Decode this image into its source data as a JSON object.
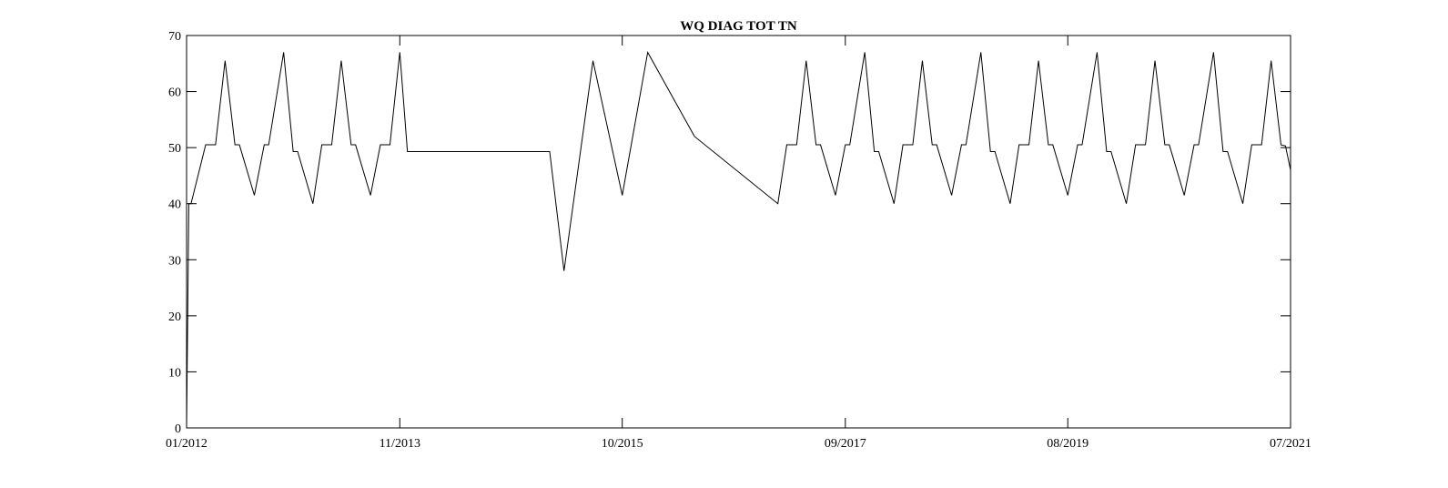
{
  "chart_data": {
    "type": "line",
    "title": "WQ DIAG TOT TN",
    "xlabel": "",
    "ylabel": "",
    "x_axis_type": "date",
    "xlim": [
      "2012-01-01",
      "2021-07-01"
    ],
    "ylim": [
      0,
      70
    ],
    "grid": false,
    "legend": "none",
    "line_color": "#000000",
    "x_ticks": [
      {
        "value": "2012-01-01",
        "label": "01/2012"
      },
      {
        "value": "2013-11-01",
        "label": "11/2013"
      },
      {
        "value": "2015-10-01",
        "label": "10/2015"
      },
      {
        "value": "2017-09-01",
        "label": "09/2017"
      },
      {
        "value": "2019-08-01",
        "label": "08/2019"
      },
      {
        "value": "2021-07-01",
        "label": "07/2021"
      }
    ],
    "y_ticks": [
      0,
      10,
      20,
      30,
      40,
      50,
      60,
      70
    ],
    "series": [
      {
        "x": [
          "2012-01-01",
          "2012-01-08",
          "2012-01-15",
          "2012-03-01",
          "2012-04-01",
          "2012-05-01",
          "2012-06-01",
          "2012-06-15",
          "2012-08-01",
          "2012-09-01",
          "2012-09-15",
          "2012-11-01",
          "2012-12-01",
          "2012-12-15",
          "2013-02-01",
          "2013-03-01",
          "2013-04-01",
          "2013-05-01",
          "2013-06-01",
          "2013-06-15",
          "2013-08-01",
          "2013-09-01",
          "2013-10-01",
          "2013-11-01",
          "2013-11-25",
          "2015-02-15",
          "2015-04-01",
          "2015-07-01",
          "2015-10-01",
          "2015-12-20",
          "2016-05-15",
          "2017-02-01",
          "2017-03-01",
          "2017-04-01",
          "2017-05-01",
          "2017-06-01",
          "2017-06-15",
          "2017-08-01",
          "2017-09-01",
          "2017-09-15",
          "2017-11-01",
          "2017-12-01",
          "2017-12-15",
          "2018-02-01",
          "2018-03-01",
          "2018-04-01",
          "2018-05-01",
          "2018-06-01",
          "2018-06-15",
          "2018-08-01",
          "2018-09-01",
          "2018-09-15",
          "2018-11-01",
          "2018-12-01",
          "2018-12-15",
          "2019-02-01",
          "2019-03-01",
          "2019-04-01",
          "2019-05-01",
          "2019-06-01",
          "2019-06-15",
          "2019-08-01",
          "2019-09-01",
          "2019-09-15",
          "2019-11-01",
          "2019-12-01",
          "2019-12-15",
          "2020-02-01",
          "2020-03-01",
          "2020-04-01",
          "2020-05-01",
          "2020-06-01",
          "2020-06-15",
          "2020-08-01",
          "2020-09-01",
          "2020-09-15",
          "2020-11-01",
          "2020-12-01",
          "2020-12-15",
          "2021-02-01",
          "2021-03-01",
          "2021-04-01",
          "2021-05-01",
          "2021-06-01",
          "2021-06-15",
          "2021-07-01"
        ],
        "y": [
          0,
          40,
          40,
          50.5,
          50.5,
          65.5,
          50.5,
          50.5,
          41.5,
          50.5,
          50.5,
          67,
          49.3,
          49.3,
          40,
          50.5,
          50.5,
          65.5,
          50.5,
          50.5,
          41.5,
          50.5,
          50.5,
          67,
          49.3,
          49.3,
          28,
          65.5,
          41.5,
          67,
          52,
          40,
          50.5,
          50.5,
          65.5,
          50.5,
          50.5,
          41.5,
          50.5,
          50.5,
          67,
          49.3,
          49.3,
          40,
          50.5,
          50.5,
          65.5,
          50.5,
          50.5,
          41.5,
          50.5,
          50.5,
          67,
          49.3,
          49.3,
          40,
          50.5,
          50.5,
          65.5,
          50.5,
          50.5,
          41.5,
          50.5,
          50.5,
          67,
          49.3,
          49.3,
          40,
          50.5,
          50.5,
          65.5,
          50.5,
          50.5,
          41.5,
          50.5,
          50.5,
          67,
          49.3,
          49.3,
          40,
          50.5,
          50.5,
          65.5,
          50.5,
          50.3,
          46
        ]
      }
    ]
  }
}
